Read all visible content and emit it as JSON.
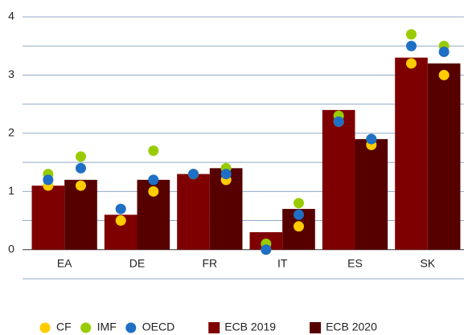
{
  "chart_data": {
    "type": "bar",
    "categories": [
      "EA",
      "DE",
      "FR",
      "IT",
      "ES",
      "SK"
    ],
    "series": [
      {
        "name": "ECB 2019",
        "kind": "bar",
        "color": "#7f0000",
        "values": [
          1.1,
          0.6,
          1.3,
          0.3,
          2.4,
          3.3
        ]
      },
      {
        "name": "ECB 2020",
        "kind": "bar",
        "color": "#560000",
        "values": [
          1.2,
          1.2,
          1.4,
          0.7,
          1.9,
          3.2
        ]
      },
      {
        "name": "CF",
        "kind": "dot",
        "color": "#ffcc00",
        "values": [
          [
            1.1,
            1.1
          ],
          [
            0.5,
            1.0
          ],
          [
            1.3,
            1.2
          ],
          [
            0.0,
            0.4
          ],
          [
            2.2,
            1.8
          ],
          [
            3.2,
            3.0
          ]
        ]
      },
      {
        "name": "IMF",
        "kind": "dot",
        "color": "#99cc00",
        "values": [
          [
            1.3,
            1.6
          ],
          [
            0.7,
            1.7
          ],
          [
            1.3,
            1.4
          ],
          [
            0.1,
            0.8
          ],
          [
            2.3,
            1.9
          ],
          [
            3.7,
            3.5
          ]
        ]
      },
      {
        "name": "OECD",
        "kind": "dot",
        "color": "#1f6fc5",
        "values": [
          [
            1.2,
            1.4
          ],
          [
            0.7,
            1.2
          ],
          [
            1.3,
            1.3
          ],
          [
            0.0,
            0.6
          ],
          [
            2.2,
            1.9
          ],
          [
            3.5,
            3.4
          ]
        ]
      }
    ],
    "ylim": [
      -0.5,
      4
    ],
    "yticks": [
      0,
      1,
      2,
      3,
      4
    ],
    "minor_grid": [
      -0.5,
      0.5,
      1.5,
      2.5,
      3.5
    ],
    "grid": true
  }
}
